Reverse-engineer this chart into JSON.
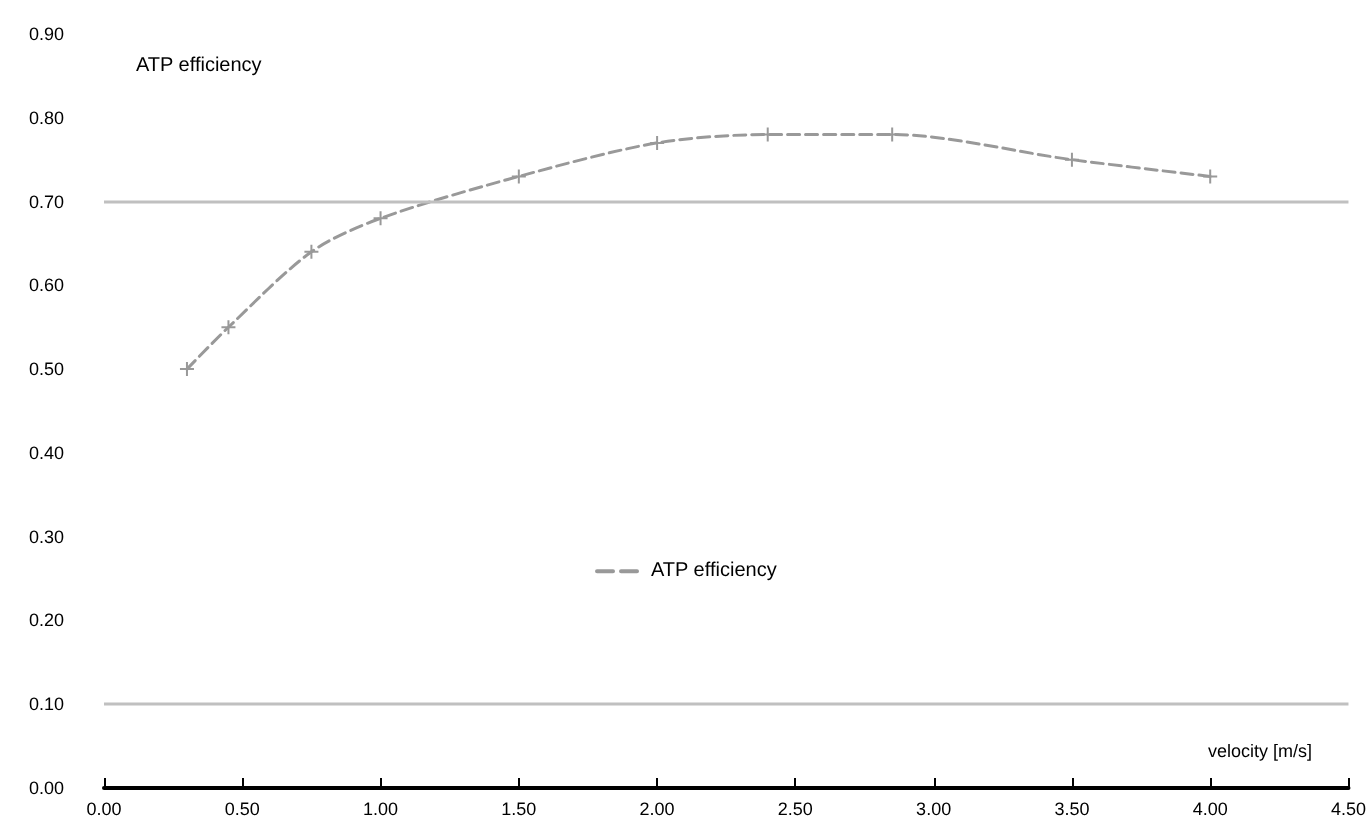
{
  "chart_data": {
    "type": "line",
    "ylabel": "ATP efficiency",
    "xlabel": "velocity [m/s]",
    "series": [
      {
        "name": "ATP efficiency",
        "color": "#999999",
        "x": [
          0.3,
          0.45,
          0.75,
          1.0,
          1.5,
          2.0,
          2.4,
          2.85,
          3.5,
          4.0
        ],
        "values": [
          0.5,
          0.55,
          0.64,
          0.68,
          0.73,
          0.77,
          0.78,
          0.78,
          0.75,
          0.73
        ]
      }
    ],
    "xlim": [
      0,
      4.5
    ],
    "xticks": [
      {
        "value": 0,
        "label": "0.00"
      },
      {
        "value": 0.5,
        "label": "0.50"
      },
      {
        "value": 1,
        "label": "1.00"
      },
      {
        "value": 1.5,
        "label": "1.50"
      },
      {
        "value": 2,
        "label": "2.00"
      },
      {
        "value": 2.5,
        "label": "2.50"
      },
      {
        "value": 3,
        "label": "3.00"
      },
      {
        "value": 3.5,
        "label": "3.50"
      },
      {
        "value": 4,
        "label": "4.00"
      },
      {
        "value": 4.5,
        "label": "4.50"
      }
    ],
    "ylim": [
      0,
      0.9
    ],
    "yticks": [
      {
        "value": 0,
        "label": "0.00"
      },
      {
        "value": 0.1,
        "label": "0.10"
      },
      {
        "value": 0.2,
        "label": "0.20"
      },
      {
        "value": 0.3,
        "label": "0.30"
      },
      {
        "value": 0.4,
        "label": "0.40"
      },
      {
        "value": 0.5,
        "label": "0.50"
      },
      {
        "value": 0.6,
        "label": "0.60"
      },
      {
        "value": 0.7,
        "label": "0.70"
      },
      {
        "value": 0.8,
        "label": "0.80"
      },
      {
        "value": 0.9,
        "label": "0.90"
      }
    ],
    "ref_lines": [
      {
        "axis": "y",
        "value": 0.1,
        "color": "#c0c0c0"
      },
      {
        "axis": "y",
        "value": 0.7,
        "color": "#c0c0c0"
      }
    ],
    "grid": false,
    "legend": "center",
    "marker": "cross",
    "line_style": "dashed"
  }
}
